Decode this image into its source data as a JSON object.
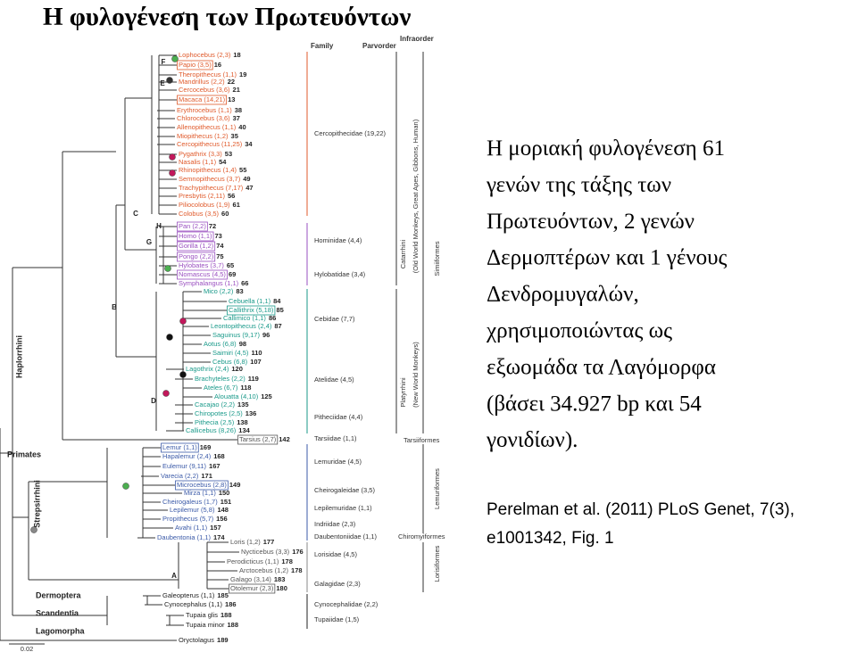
{
  "title": "Η φυλογένεση των Πρωτευόντων",
  "figure": {
    "headers": [
      "Family",
      "Parvorder",
      "Infraorder"
    ],
    "leaves": [
      {
        "label": "Lophocebus (2,3)",
        "id": 18
      },
      {
        "label": "Papio (3,5)",
        "id": 16
      },
      {
        "label": "Theropithecus (1,1)",
        "id": 19
      },
      {
        "label": "Mandrillus (2,2)",
        "id": 22
      },
      {
        "label": "Cercocebus (3,6)",
        "id": 21
      },
      {
        "label": "Macaca (14,21)",
        "id": 13
      },
      {
        "label": "Erythrocebus (1,1)",
        "id": 38
      },
      {
        "label": "Chlorocebus (3,6)",
        "id": 37
      },
      {
        "label": "Allenopithecus (1,1)",
        "id": 40
      },
      {
        "label": "Miopithecus (1,2)",
        "id": 35
      },
      {
        "label": "Cercopithecus (11,25)",
        "id": 34
      },
      {
        "label": "Pygathrix (3,3)",
        "id": 53
      },
      {
        "label": "Nasalis (1,1)",
        "id": 54
      },
      {
        "label": "Rhinopithecus (1,4)",
        "id": 55
      },
      {
        "label": "Semnopithecus (3,7)",
        "id": 49
      },
      {
        "label": "Trachypithecus (7,17)",
        "id": 47
      },
      {
        "label": "Presbytis (2,11)",
        "id": 56
      },
      {
        "label": "Piliocolobus (1,9)",
        "id": 61
      },
      {
        "label": "Colobus (3,5)",
        "id": 60
      },
      {
        "label": "Pan (2,2)",
        "id": 72
      },
      {
        "label": "Homo (1,1)",
        "id": 73
      },
      {
        "label": "Gorilla (1,2)",
        "id": 74
      },
      {
        "label": "Pongo (2,2)",
        "id": 75
      },
      {
        "label": "Hylobates (3,7)",
        "id": 65
      },
      {
        "label": "Nomascus (4,5)",
        "id": 69
      },
      {
        "label": "Symphalangus (1,1)",
        "id": 66
      },
      {
        "label": "Mico (2,2)",
        "id": 83
      },
      {
        "label": "Cebuella (1,1)",
        "id": 84
      },
      {
        "label": "Callithrix (5,18)",
        "id": 85
      },
      {
        "label": "Callimico (1,1)",
        "id": 86
      },
      {
        "label": "Leontopithecus (2,4)",
        "id": 87
      },
      {
        "label": "Saguinus (9,17)",
        "id": 96
      },
      {
        "label": "Aotus (6,8)",
        "id": 98
      },
      {
        "label": "Saimiri (4,5)",
        "id": 110
      },
      {
        "label": "Cebus (6,8)",
        "id": 107
      },
      {
        "label": "Lagothrix (2,4)",
        "id": 120
      },
      {
        "label": "Brachyteles (2,2)",
        "id": 119
      },
      {
        "label": "Ateles (6,7)",
        "id": 118
      },
      {
        "label": "Alouatta (4,10)",
        "id": 125
      },
      {
        "label": "Cacajao (2,2)",
        "id": 135
      },
      {
        "label": "Chiropotes (2,5)",
        "id": 136
      },
      {
        "label": "Pithecia (2,5)",
        "id": 138
      },
      {
        "label": "Callicebus (8,26)",
        "id": 134
      },
      {
        "label": "Tarsius (2,7)",
        "id": 142
      },
      {
        "label": "Lemur (1,1)",
        "id": 169
      },
      {
        "label": "Hapalemur (2,4)",
        "id": 168
      },
      {
        "label": "Eulemur (9,11)",
        "id": 167
      },
      {
        "label": "Varecia (2,2)",
        "id": 171
      },
      {
        "label": "Microcebus (2,8)",
        "id": 149
      },
      {
        "label": "Mirza (1,1)",
        "id": 150
      },
      {
        "label": "Cheirogaleus (1,7)",
        "id": 151
      },
      {
        "label": "Lepilemur (5,8)",
        "id": 148
      },
      {
        "label": "Propithecus (5,7)",
        "id": 156
      },
      {
        "label": "Avahi (1,1)",
        "id": 157
      },
      {
        "label": "Daubentonia (1,1)",
        "id": 174
      },
      {
        "label": "Loris (1,2)",
        "id": 177
      },
      {
        "label": "Nycticebus (3,3)",
        "id": 176
      },
      {
        "label": "Perodicticus (1,1)",
        "id": 178
      },
      {
        "label": "Arctocebus (1,2)",
        "id": 178
      },
      {
        "label": "Galago (3,14)",
        "id": 183
      },
      {
        "label": "Otolemur (2,3)",
        "id": 180
      },
      {
        "label": "Galeopterus (1,1)",
        "id": 185
      },
      {
        "label": "Cynocephalus (1,1)",
        "id": 186
      },
      {
        "label": "Tupaia glis",
        "id": 188
      },
      {
        "label": "Tupaia minor",
        "id": 188
      },
      {
        "label": "Oryctolagus",
        "id": 189
      }
    ],
    "families": [
      "Cercopithecidae (19,22)",
      "Hominidae (4,4)",
      "Hylobatidae (3,4)",
      "Cebidae (7,7)",
      "Atelidae (4,5)",
      "Pitheciidae (4,4)",
      "Tarsiidae (1,1)",
      "Lemuridae (4,5)",
      "Cheirogaleidae (3,5)",
      "Lepilemuridae (1,1)",
      "Indriidae (2,3)",
      "Daubentoniidae (1,1)",
      "Lorisidae (4,5)",
      "Galagidae (2,3)",
      "Cynocephalidae (2,2)",
      "Tupaiidae (1,5)"
    ],
    "groups": {
      "catarrhini": [
        "Catarrhini",
        "(Old World Monkeys, Great Apes, Gibbons, Human)"
      ],
      "platyrrhini": [
        "Platyrrhini",
        "(New World Monkeys)"
      ],
      "simiiformes": "Simiiformes",
      "tarsiiformes": "Tarsiiformes",
      "lemuriformes": "Lemuriformes",
      "chiromyiformes": "Chiromyiformes",
      "lorisiformes": "Lorisiformes"
    },
    "clades": [
      "Primates",
      "Haplorrhini",
      "Strepsirrhini",
      "Dermoptera",
      "Scandentia",
      "Lagomorpha"
    ],
    "nodes": [
      "A",
      "B",
      "C",
      "D",
      "E",
      "F",
      "G",
      "H"
    ],
    "scale": "0.02"
  },
  "description": [
    "Η μοριακή φυλογένεση 61",
    "γενών της τάξης των",
    "Πρωτευόντων, 2 γενών",
    "Δερμοπτέρων και 1 γένους",
    "Δενδρομυγαλών,",
    "χρησιμοποιώντας ως",
    "εξωομάδα τα Λαγόμορφα",
    "(βάσει 34.927 bp και 54",
    "γονιδίων)."
  ],
  "citation": [
    "Perelman et al. (2011) PLoS Genet, 7(3),",
    "e1001342, Fig. 1"
  ]
}
